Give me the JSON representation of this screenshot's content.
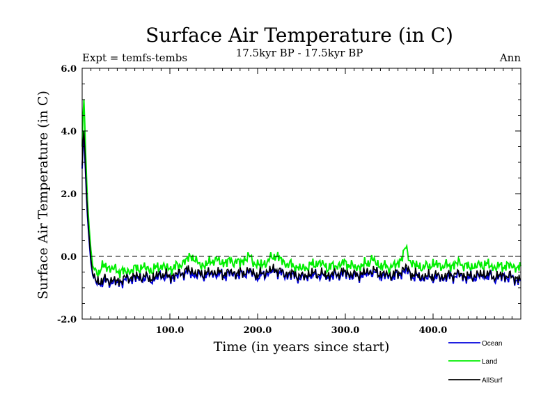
{
  "chart_data": {
    "type": "line",
    "title": "Surface Air Temperature (in C)",
    "subtitle": "17.5kyr BP - 17.5kyr BP",
    "experiment": "Expt = temfs-tembs",
    "period": "Ann",
    "xlabel": "Time (in years since start)",
    "ylabel": "Surface Air Temperature (in C)",
    "xlim": [
      0,
      500
    ],
    "ylim": [
      -2,
      6
    ],
    "xticks": [
      100,
      200,
      300,
      400
    ],
    "xtick_labels": [
      "100.0",
      "200.0",
      "300.0",
      "400.0"
    ],
    "yticks": [
      -2,
      0,
      2,
      4,
      6
    ],
    "ytick_labels": [
      "-2.0",
      "0.0",
      "2.0",
      "4.0",
      "6.0"
    ],
    "reference_line": 0,
    "legend": [
      "Ocean",
      "Land",
      "AllSurf"
    ],
    "series": [
      {
        "name": "Land",
        "color": "#00ee00",
        "x": [
          0,
          1,
          2,
          3,
          4,
          5,
          6,
          8,
          10,
          12,
          15,
          20,
          25,
          30,
          40,
          50,
          60,
          70,
          80,
          90,
          100,
          110,
          120,
          125,
          130,
          140,
          150,
          160,
          170,
          180,
          190,
          200,
          210,
          220,
          230,
          240,
          250,
          260,
          270,
          280,
          290,
          300,
          310,
          320,
          330,
          340,
          350,
          360,
          369,
          375,
          380,
          390,
          400,
          410,
          420,
          430,
          440,
          450,
          460,
          470,
          480,
          490,
          500
        ],
        "y": [
          3.5,
          4.5,
          5.0,
          4.2,
          3.3,
          2.5,
          1.8,
          0.9,
          0.2,
          -0.3,
          -0.5,
          -0.45,
          -0.3,
          -0.35,
          -0.45,
          -0.5,
          -0.4,
          -0.35,
          -0.45,
          -0.3,
          -0.4,
          -0.3,
          -0.1,
          0.05,
          -0.2,
          -0.3,
          -0.1,
          -0.2,
          -0.15,
          -0.2,
          0.0,
          -0.3,
          -0.2,
          0.05,
          -0.2,
          -0.3,
          -0.4,
          -0.3,
          -0.2,
          -0.35,
          -0.3,
          -0.2,
          -0.35,
          -0.3,
          -0.1,
          -0.3,
          -0.35,
          -0.25,
          0.25,
          -0.2,
          -0.3,
          -0.35,
          -0.25,
          -0.3,
          -0.3,
          -0.2,
          -0.35,
          -0.3,
          -0.25,
          -0.35,
          -0.3,
          -0.3,
          -0.4
        ]
      },
      {
        "name": "Ocean",
        "color": "#0000dd",
        "x": [
          0,
          1,
          2,
          3,
          4,
          5,
          6,
          8,
          10,
          12,
          15,
          20,
          25,
          30,
          40,
          50,
          60,
          70,
          80,
          90,
          100,
          110,
          120,
          125,
          130,
          140,
          150,
          160,
          170,
          180,
          190,
          200,
          210,
          220,
          230,
          240,
          250,
          260,
          270,
          280,
          290,
          300,
          310,
          320,
          330,
          340,
          350,
          360,
          369,
          375,
          380,
          390,
          400,
          410,
          420,
          430,
          440,
          450,
          460,
          470,
          480,
          490,
          500
        ],
        "y": [
          2.8,
          3.6,
          3.8,
          3.2,
          2.6,
          1.9,
          1.3,
          0.5,
          -0.2,
          -0.6,
          -0.8,
          -0.85,
          -0.8,
          -0.8,
          -0.85,
          -0.75,
          -0.7,
          -0.7,
          -0.75,
          -0.6,
          -0.7,
          -0.6,
          -0.5,
          -0.55,
          -0.6,
          -0.6,
          -0.55,
          -0.6,
          -0.55,
          -0.6,
          -0.5,
          -0.65,
          -0.55,
          -0.45,
          -0.6,
          -0.6,
          -0.7,
          -0.6,
          -0.6,
          -0.65,
          -0.6,
          -0.55,
          -0.65,
          -0.6,
          -0.5,
          -0.6,
          -0.65,
          -0.6,
          -0.45,
          -0.6,
          -0.65,
          -0.7,
          -0.65,
          -0.7,
          -0.65,
          -0.6,
          -0.7,
          -0.65,
          -0.6,
          -0.7,
          -0.65,
          -0.7,
          -0.8
        ]
      },
      {
        "name": "AllSurf",
        "color": "#000000",
        "x": [
          0,
          1,
          2,
          3,
          4,
          5,
          6,
          8,
          10,
          12,
          15,
          20,
          25,
          30,
          40,
          50,
          60,
          70,
          80,
          90,
          100,
          110,
          120,
          125,
          130,
          140,
          150,
          160,
          170,
          180,
          190,
          200,
          210,
          220,
          230,
          240,
          250,
          260,
          270,
          280,
          290,
          300,
          310,
          320,
          330,
          340,
          350,
          360,
          369,
          375,
          380,
          390,
          400,
          410,
          420,
          430,
          440,
          450,
          460,
          470,
          480,
          490,
          500
        ],
        "y": [
          2.9,
          3.7,
          4.0,
          3.4,
          2.7,
          2.0,
          1.4,
          0.6,
          -0.1,
          -0.55,
          -0.75,
          -0.8,
          -0.75,
          -0.75,
          -0.8,
          -0.7,
          -0.65,
          -0.65,
          -0.7,
          -0.55,
          -0.65,
          -0.55,
          -0.45,
          -0.45,
          -0.55,
          -0.55,
          -0.5,
          -0.55,
          -0.5,
          -0.55,
          -0.45,
          -0.6,
          -0.5,
          -0.4,
          -0.55,
          -0.55,
          -0.65,
          -0.55,
          -0.55,
          -0.6,
          -0.55,
          -0.5,
          -0.6,
          -0.55,
          -0.45,
          -0.55,
          -0.6,
          -0.55,
          -0.35,
          -0.55,
          -0.6,
          -0.65,
          -0.6,
          -0.65,
          -0.6,
          -0.55,
          -0.65,
          -0.6,
          -0.55,
          -0.65,
          -0.6,
          -0.65,
          -0.75
        ]
      }
    ]
  }
}
